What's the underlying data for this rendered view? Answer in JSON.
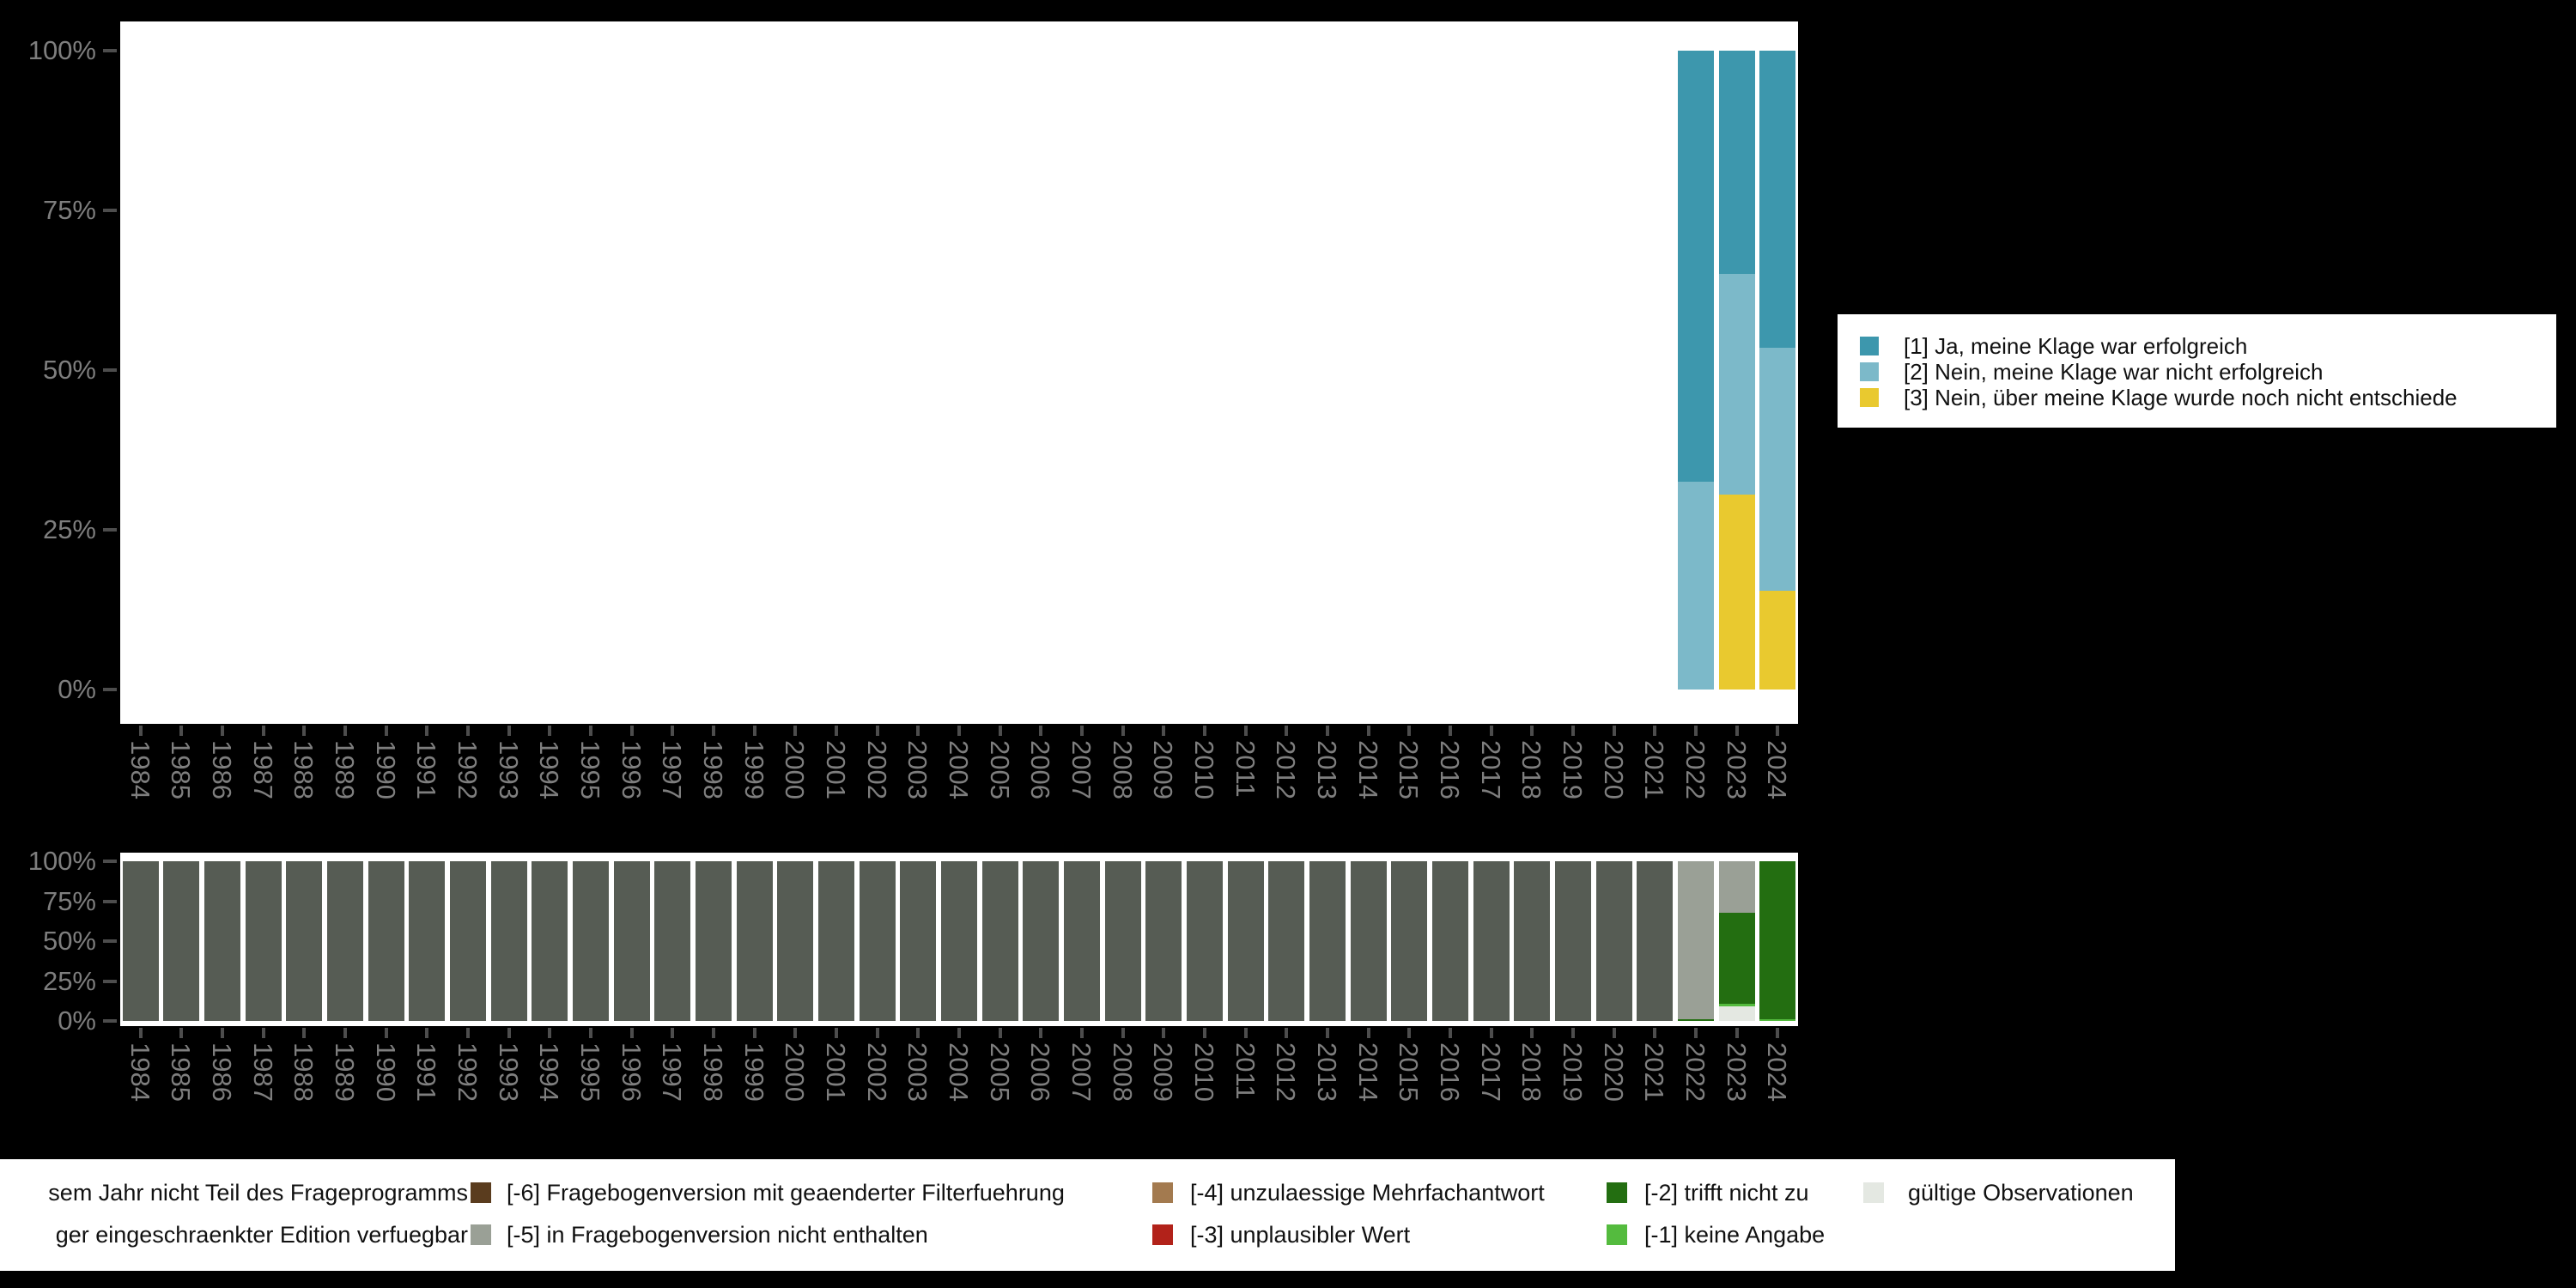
{
  "background_color": "#000000",
  "colors": {
    "teal": "#3d97ad",
    "lightblue": "#7cb9c9",
    "yellow": "#e9c92f",
    "darkgray": "#565c54",
    "gray": "#9aa096",
    "darkgreen": "#236e11",
    "green": "#54bb3e",
    "pale": "#e4e8e2",
    "brown": "#5a3c1e",
    "tan": "#a37a4f",
    "red": "#b2221a",
    "axis_label": "#7e7e7e",
    "tick": "#4d4d4d",
    "panel": "#ffffff"
  },
  "years": [
    "1984",
    "1985",
    "1986",
    "1987",
    "1988",
    "1989",
    "1990",
    "1991",
    "1992",
    "1993",
    "1994",
    "1995",
    "1996",
    "1997",
    "1998",
    "1999",
    "2000",
    "2001",
    "2002",
    "2003",
    "2004",
    "2005",
    "2006",
    "2007",
    "2008",
    "2009",
    "2010",
    "2011",
    "2012",
    "2013",
    "2014",
    "2015",
    "2016",
    "2017",
    "2018",
    "2019",
    "2020",
    "2021",
    "2022",
    "2023",
    "2024"
  ],
  "y_tick_labels": [
    "100%",
    "75%",
    "50%",
    "25%",
    "0%"
  ],
  "chart_data": [
    {
      "id": "answers",
      "type": "bar",
      "subtype": "stacked-percent-column",
      "title": "",
      "xlabel": "",
      "ylabel": "",
      "ylim": [
        0,
        100
      ],
      "ytick_values": [
        100,
        75,
        50,
        25,
        0
      ],
      "grid": false,
      "legend_position": "right",
      "categories": [
        "1984",
        "1985",
        "1986",
        "1987",
        "1988",
        "1989",
        "1990",
        "1991",
        "1992",
        "1993",
        "1994",
        "1995",
        "1996",
        "1997",
        "1998",
        "1999",
        "2000",
        "2001",
        "2002",
        "2003",
        "2004",
        "2005",
        "2006",
        "2007",
        "2008",
        "2009",
        "2010",
        "2011",
        "2012",
        "2013",
        "2014",
        "2015",
        "2016",
        "2017",
        "2018",
        "2019",
        "2020",
        "2021",
        "2022",
        "2023",
        "2024"
      ],
      "series": [
        {
          "name": "[1] Ja, meine Klage war erfolgreich",
          "color_key": "teal",
          "values_by_year": {
            "2022": 67.5,
            "2023": 35,
            "2024": 46.5
          }
        },
        {
          "name": "[2] Nein, meine Klage war nicht erfolgreich",
          "color_key": "lightblue",
          "values_by_year": {
            "2022": 32.5,
            "2023": 34.5,
            "2024": 38
          }
        },
        {
          "name": "[3] Nein, über meine Klage wurde noch nicht entschiede",
          "color_key": "yellow",
          "values_by_year": {
            "2023": 30.5,
            "2024": 15.5
          }
        }
      ]
    },
    {
      "id": "missings",
      "type": "bar",
      "subtype": "stacked-percent-column",
      "title": "",
      "xlabel": "",
      "ylabel": "",
      "ylim": [
        0,
        100
      ],
      "ytick_values": [
        100,
        75,
        50,
        25,
        0
      ],
      "grid": false,
      "legend_position": "bottom",
      "categories": [
        "1984",
        "1985",
        "1986",
        "1987",
        "1988",
        "1989",
        "1990",
        "1991",
        "1992",
        "1993",
        "1994",
        "1995",
        "1996",
        "1997",
        "1998",
        "1999",
        "2000",
        "2001",
        "2002",
        "2003",
        "2004",
        "2005",
        "2006",
        "2007",
        "2008",
        "2009",
        "2010",
        "2011",
        "2012",
        "2013",
        "2014",
        "2015",
        "2016",
        "2017",
        "2018",
        "2019",
        "2020",
        "2021",
        "2022",
        "2023",
        "2024"
      ],
      "series": [
        {
          "name": "nicht Teil des Frageprogramms",
          "color_key": "darkgray",
          "values_by_year": {
            "1984-2021": 100
          }
        },
        {
          "name": "in Fragebogenversion nicht enthalten / eingeschraenkte Edition",
          "color_key": "gray",
          "values_by_year": {
            "2022": 99,
            "2023": 32
          }
        },
        {
          "name": "[-2] trifft nicht zu",
          "color_key": "darkgreen",
          "values_by_year": {
            "2022": 1,
            "2023": 57.5,
            "2024": 99
          }
        },
        {
          "name": "[-1] keine Angabe",
          "color_key": "green",
          "values_by_year": {
            "2023": 1.5,
            "2024": 1
          }
        },
        {
          "name": "gültige Observationen",
          "color_key": "pale",
          "values_by_year": {
            "2023": 9
          }
        }
      ]
    }
  ],
  "top_legend": {
    "items": [
      {
        "label": "[1] Ja, meine Klage war erfolgreich",
        "color_key": "teal"
      },
      {
        "label": "[2] Nein, meine Klage war nicht erfolgreich",
        "color_key": "lightblue"
      },
      {
        "label": "[3] Nein, über meine Klage wurde noch nicht entschiede",
        "color_key": "yellow"
      }
    ]
  },
  "bottom_legend": {
    "entries": [
      {
        "label": "sem Jahr nicht Teil des Frageprogramms",
        "color_key": null,
        "col": 1,
        "row": 1,
        "note": "clipped at left edge"
      },
      {
        "label": "ger eingeschraenkter Edition verfuegbar",
        "color_key": null,
        "col": 1,
        "row": 2,
        "note": "clipped at left edge"
      },
      {
        "label": "[-6] Fragebogenversion mit geaenderter Filterfuehrung",
        "color_key": "brown",
        "col": 2,
        "row": 1
      },
      {
        "label": "[-5] in Fragebogenversion nicht enthalten",
        "color_key": "gray",
        "col": 2,
        "row": 2
      },
      {
        "label": "[-4] unzulaessige Mehrfachantwort",
        "color_key": "tan",
        "col": 3,
        "row": 1
      },
      {
        "label": "[-3] unplausibler Wert",
        "color_key": "red",
        "col": 3,
        "row": 2
      },
      {
        "label": "[-2] trifft nicht zu",
        "color_key": "darkgreen",
        "col": 4,
        "row": 1
      },
      {
        "label": "[-1] keine Angabe",
        "color_key": "green",
        "col": 4,
        "row": 2
      },
      {
        "label": "gültige Observationen",
        "color_key": "pale",
        "col": 5,
        "row": 1
      }
    ]
  }
}
